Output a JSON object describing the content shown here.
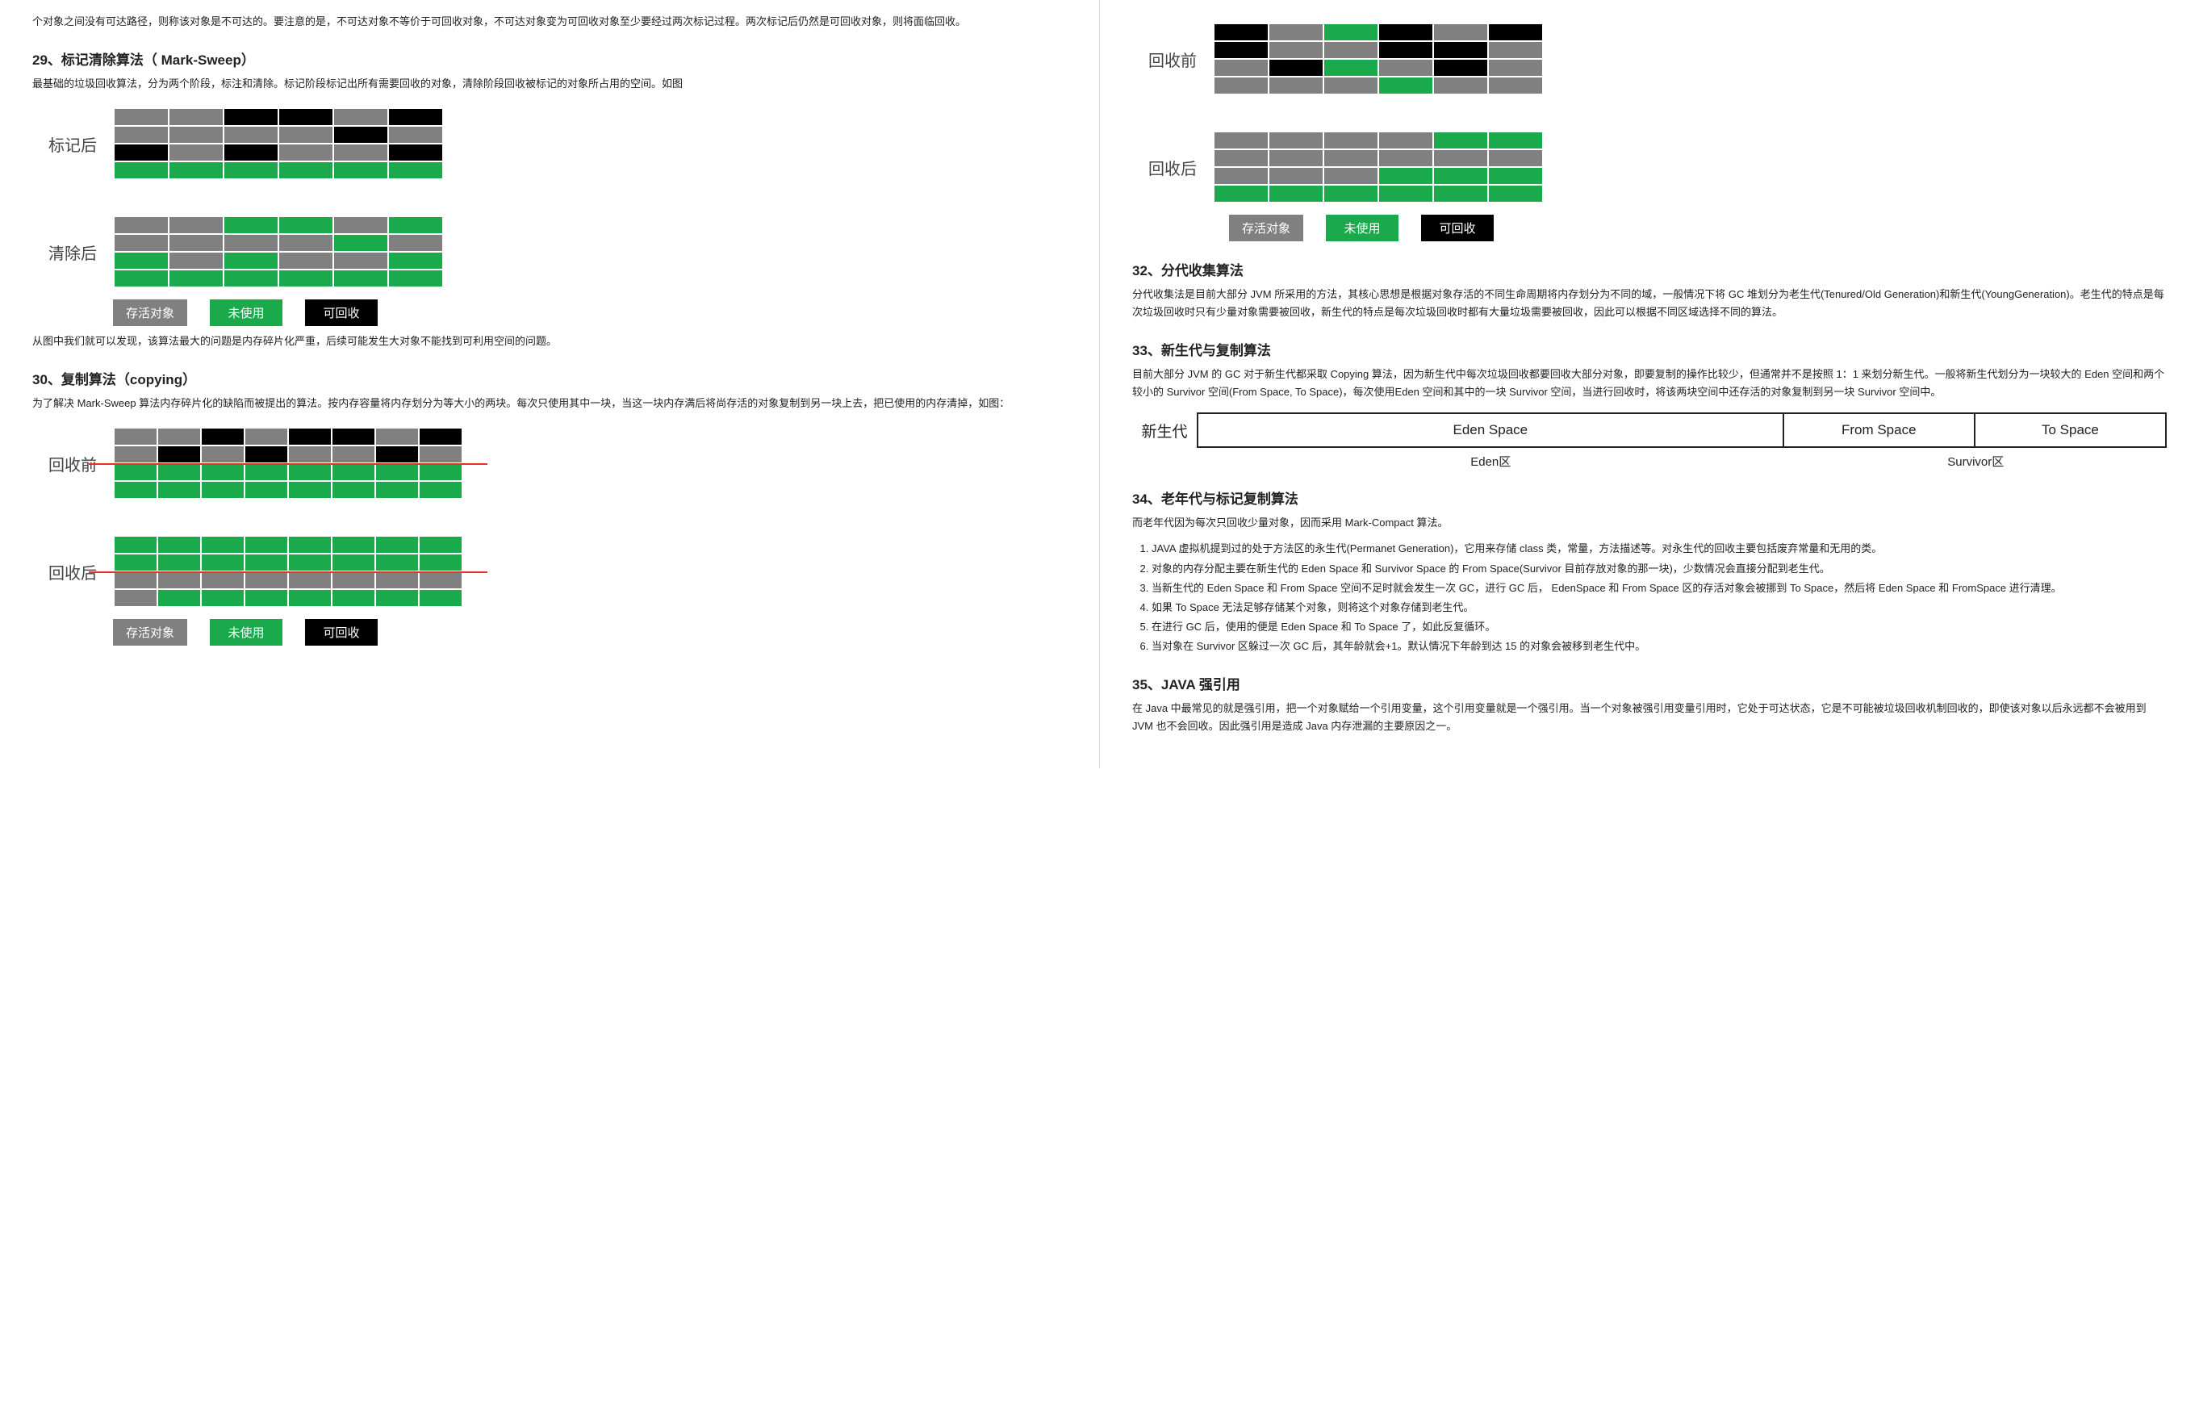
{
  "colors": {
    "grey": "#808080",
    "black": "#000000",
    "green": "#1aaa4c",
    "red": "#e4322b",
    "border": "#dddddd",
    "text": "#222222"
  },
  "legend": {
    "survived": "存活对象",
    "unused": "未使用",
    "reclaimable": "可回收"
  },
  "left": {
    "intro_p": "个对象之间没有可达路径，则称该对象是不可达的。要注意的是，不可达对象不等价于可回收对象，不可达对象变为可回收对象至少要经过两次标记过程。两次标记后仍然是可回收对象，则将面临回收。",
    "s29": {
      "title": "29、标记清除算法（ Mark-Sweep）",
      "p": "最基础的垃圾回收算法，分为两个阶段，标注和清除。标记阶段标记出所有需要回收的对象，清除阶段回收被标记的对象所占用的空间。如图",
      "label1": "标记后",
      "label2": "清除后",
      "grid1": [
        [
          "grey",
          "grey",
          "black",
          "black",
          "grey",
          "black"
        ],
        [
          "grey",
          "grey",
          "grey",
          "grey",
          "black",
          "grey"
        ],
        [
          "black",
          "grey",
          "black",
          "grey",
          "grey",
          "black"
        ],
        [
          "green",
          "green",
          "green",
          "green",
          "green",
          "green"
        ]
      ],
      "grid2": [
        [
          "grey",
          "grey",
          "green",
          "green",
          "grey",
          "green"
        ],
        [
          "grey",
          "grey",
          "grey",
          "grey",
          "green",
          "grey"
        ],
        [
          "green",
          "grey",
          "green",
          "grey",
          "grey",
          "green"
        ],
        [
          "green",
          "green",
          "green",
          "green",
          "green",
          "green"
        ]
      ],
      "p2": "从图中我们就可以发现，该算法最大的问题是内存碎片化严重，后续可能发生大对象不能找到可利用空间的问题。"
    },
    "s30": {
      "title": "30、复制算法（copying）",
      "p": "为了解决 Mark-Sweep 算法内存碎片化的缺陷而被提出的算法。按内存容量将内存划分为等大小的两块。每次只使用其中一块，当这一块内存满后将尚存活的对象复制到另一块上去，把已使用的内存清掉，如图：",
      "label1": "回收前",
      "label2": "回收后",
      "grid1": [
        [
          "grey",
          "grey",
          "black",
          "grey",
          "black",
          "black",
          "grey",
          "black"
        ],
        [
          "grey",
          "black",
          "grey",
          "black",
          "grey",
          "grey",
          "black",
          "grey"
        ],
        [
          "green",
          "green",
          "green",
          "green",
          "green",
          "green",
          "green",
          "green"
        ],
        [
          "green",
          "green",
          "green",
          "green",
          "green",
          "green",
          "green",
          "green"
        ]
      ],
      "grid2": [
        [
          "green",
          "green",
          "green",
          "green",
          "green",
          "green",
          "green",
          "green"
        ],
        [
          "green",
          "green",
          "green",
          "green",
          "green",
          "green",
          "green",
          "green"
        ],
        [
          "grey",
          "grey",
          "grey",
          "grey",
          "grey",
          "grey",
          "grey",
          "grey"
        ],
        [
          "grey",
          "green",
          "green",
          "green",
          "green",
          "green",
          "green",
          "green"
        ]
      ]
    }
  },
  "right": {
    "fig31": {
      "label1": "回收前",
      "label2": "回收后",
      "grid1": [
        [
          "black",
          "grey",
          "green",
          "black",
          "grey",
          "black"
        ],
        [
          "black",
          "grey",
          "grey",
          "black",
          "black",
          "grey"
        ],
        [
          "grey",
          "black",
          "green",
          "grey",
          "black",
          "grey"
        ],
        [
          "grey",
          "grey",
          "grey",
          "green",
          "grey",
          "grey"
        ]
      ],
      "grid2": [
        [
          "grey",
          "grey",
          "grey",
          "grey",
          "green",
          "green"
        ],
        [
          "grey",
          "grey",
          "grey",
          "grey",
          "grey",
          "grey"
        ],
        [
          "grey",
          "grey",
          "grey",
          "green",
          "green",
          "green"
        ],
        [
          "green",
          "green",
          "green",
          "green",
          "green",
          "green"
        ]
      ]
    },
    "s32": {
      "title": "32、分代收集算法",
      "p": "分代收集法是目前大部分 JVM 所采用的方法，其核心思想是根据对象存活的不同生命周期将内存划分为不同的域，一般情况下将 GC 堆划分为老生代(Tenured/Old Generation)和新生代(YoungGeneration)。老生代的特点是每次垃圾回收时只有少量对象需要被回收，新生代的特点是每次垃圾回收时都有大量垃圾需要被回收，因此可以根据不同区域选择不同的算法。"
    },
    "s33": {
      "title": "33、新生代与复制算法",
      "p": "目前大部分 JVM 的 GC 对于新生代都采取 Copying 算法，因为新生代中每次垃圾回收都要回收大部分对象，即要复制的操作比较少，但通常并不是按照 1：1 来划分新生代。一般将新生代划分为一块较大的 Eden 空间和两个较小的 Survivor 空间(From Space, To Space)，每次使用Eden 空间和其中的一块 Survivor 空间，当进行回收时，将该两块空间中还存活的对象复制到另一块 Survivor 空间中。",
      "gen_label": "新生代",
      "eden": "Eden Space",
      "from": "From Space",
      "to": "To Space",
      "eden_sub": "Eden区",
      "surv_sub": "Survivor区"
    },
    "s34": {
      "title": "34、老年代与标记复制算法",
      "p": "而老年代因为每次只回收少量对象，因而采用 Mark-Compact 算法。",
      "items": [
        "JAVA 虚拟机提到过的处于方法区的永生代(Permanet Generation)，它用来存储 class 类，常量，方法描述等。对永生代的回收主要包括废弃常量和无用的类。",
        "对象的内存分配主要在新生代的 Eden Space 和 Survivor Space 的 From Space(Survivor 目前存放对象的那一块)，少数情况会直接分配到老生代。",
        "当新生代的 Eden Space 和 From Space 空间不足时就会发生一次 GC，进行 GC 后， EdenSpace 和 From Space 区的存活对象会被挪到 To Space，然后将 Eden Space 和 FromSpace 进行清理。",
        "如果 To Space 无法足够存储某个对象，则将这个对象存储到老生代。",
        "在进行 GC 后，使用的便是 Eden Space 和 To Space 了，如此反复循环。",
        "当对象在 Survivor 区躲过一次 GC 后，其年龄就会+1。默认情况下年龄到达 15 的对象会被移到老生代中。"
      ]
    },
    "s35": {
      "title": "35、JAVA 强引用",
      "p": "在 Java 中最常见的就是强引用，把一个对象赋给一个引用变量，这个引用变量就是一个强引用。当一个对象被强引用变量引用时，它处于可达状态，它是不可能被垃圾回收机制回收的，即使该对象以后永远都不会被用到 JVM 也不会回收。因此强引用是造成 Java 内存泄漏的主要原因之一。"
    }
  }
}
